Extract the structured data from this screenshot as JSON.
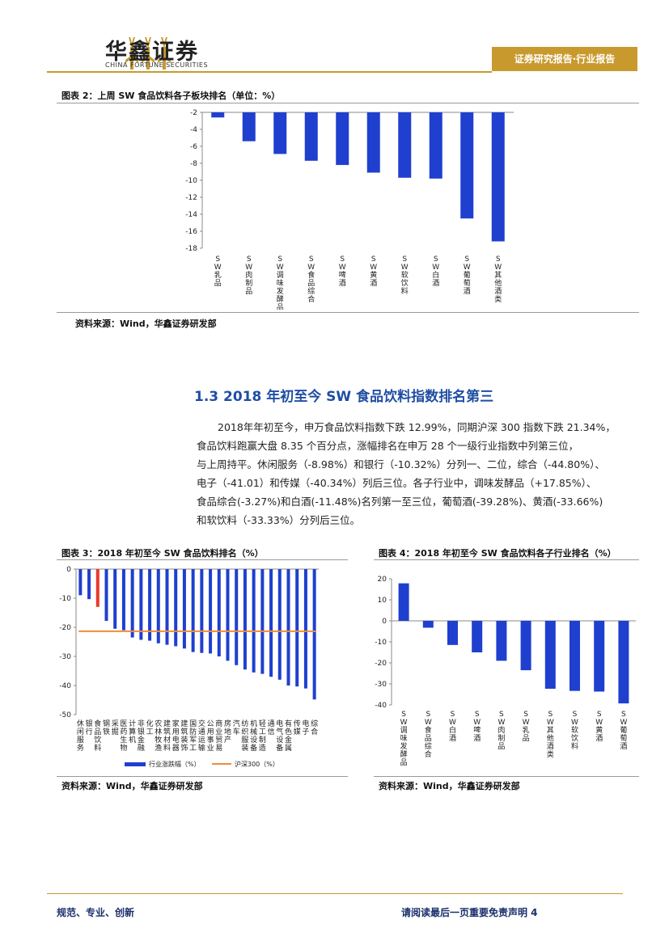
{
  "header": {
    "logo_cn": "华鑫证券",
    "logo_en": "CHINA FORTUNE SECURITIES",
    "tag": "证券研究报告·行业报告"
  },
  "chart2": {
    "title": "图表 2：上周 SW 食品饮料各子板块排名（单位：%）",
    "source": "资料来源：Wind，华鑫证券研发部"
  },
  "section": {
    "title": "1.3 2018 年初至今 SW 食品饮料指数排名第三",
    "lines": [
      "2018年年初至今，申万食品饮料指数下跌 12.99%，同期沪深 300 指数下跌 21.34%，",
      "食品饮料跑赢大盘 8.35 个百分点，涨幅排名在申万 28 个一级行业指数中列第三位，",
      "与上周持平。休闲服务（-8.98%）和银行（-10.32%）分列一、二位，综合（-44.80%）、",
      "电子（-41.01）和传媒（-40.34%）列后三位。各子行业中，调味发酵品（+17.85%）、",
      "食品综合(-3.27%)和白酒(-11.48%)名列第一至三位，葡萄酒(-39.28%)、黄酒(-33.66%)",
      "和软饮料（-33.33%）分列后三位。"
    ]
  },
  "chart3": {
    "title": "图表 3：2018 年初至今 SW 食品饮料排名（%）",
    "source": "资料来源：Wind，华鑫证券研发部"
  },
  "chart4": {
    "title": "图表 4：2018 年初至今 SW 食品饮料各子行业排名（%）",
    "source": "资料来源：Wind，华鑫证券研发部"
  },
  "footer": {
    "left": "规范、专业、创新",
    "right": "请阅读最后一页重要免责声明 4"
  },
  "chart_data": [
    {
      "type": "bar",
      "categories": [
        "SW乳品",
        "SW肉制品",
        "SW调味发酵品",
        "SW食品综合",
        "SW啤酒",
        "SW黄酒",
        "SW软饮料",
        "SW白酒",
        "SW葡萄酒",
        "SW其他酒类"
      ],
      "values": [
        -2.6,
        -5.4,
        -6.9,
        -7.7,
        -8.2,
        -9.1,
        -9.7,
        -9.8,
        -14.5,
        -17.2
      ],
      "ylim": [
        -18,
        -2
      ],
      "yticks": [
        -2,
        -4,
        -6,
        -8,
        -10,
        -12,
        -14,
        -16,
        -18
      ],
      "color": "#1f3fcf"
    },
    {
      "type": "bar",
      "categories": [
        "休闲服务",
        "银行",
        "食品饮料",
        "钢铁",
        "采掘",
        "医药生物",
        "计算机",
        "非银金融",
        "化工",
        "农林牧渔",
        "建筑材料",
        "家用电器",
        "建筑装饰",
        "国防军工",
        "交通运输",
        "公用事业",
        "商业贸易",
        "房地产",
        "汽车",
        "纺织服装",
        "机械设备",
        "轻工制造",
        "通信",
        "电气设备",
        "有色金属",
        "传媒",
        "电子",
        "综合"
      ],
      "series": [
        {
          "name": "行业涨跌幅（%）",
          "values": [
            -8.98,
            -10.32,
            -12.99,
            -17.8,
            -20.5,
            -21.0,
            -23.5,
            -24.3,
            -24.6,
            -25.5,
            -26.0,
            -26.5,
            -27.3,
            -28.5,
            -28.8,
            -29.0,
            -30.0,
            -31.5,
            -33.0,
            -34.5,
            -35.5,
            -36.0,
            -37.0,
            -38.0,
            -40.0,
            -40.34,
            -41.01,
            -44.8
          ],
          "color": "#1f3fcf",
          "highlight_index": 2,
          "highlight_color": "#e8392b"
        },
        {
          "name": "沪深300（%）",
          "value": -21.34,
          "color": "#f08c3c"
        }
      ],
      "ylim": [
        -50,
        0
      ],
      "yticks": [
        0,
        -10,
        -20,
        -30,
        -40,
        -50
      ]
    },
    {
      "type": "bar",
      "categories": [
        "SW调味发酵品",
        "SW食品综合",
        "SW白酒",
        "SW啤酒",
        "SW肉制品",
        "SW乳品",
        "SW其他酒类",
        "SW软饮料",
        "SW黄酒",
        "SW葡萄酒"
      ],
      "values": [
        17.85,
        -3.27,
        -11.48,
        -15.0,
        -19.0,
        -23.5,
        -32.3,
        -33.33,
        -33.66,
        -39.28
      ],
      "ylim": [
        -40,
        20
      ],
      "yticks": [
        20,
        10,
        0,
        -10,
        -20,
        -30,
        -40
      ],
      "color": "#1f3fcf"
    }
  ]
}
